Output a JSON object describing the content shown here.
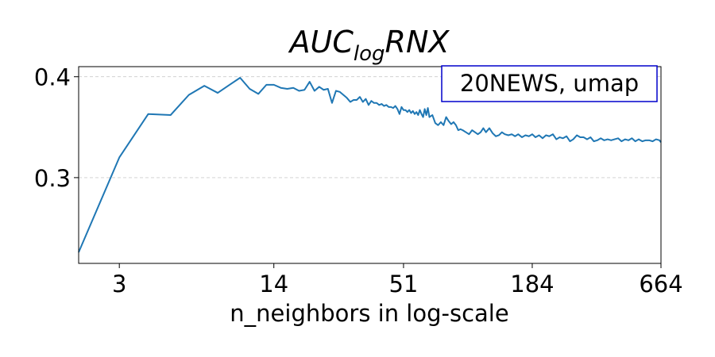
{
  "chart_data": {
    "type": "line",
    "title_main": "AUC",
    "title_sub": "log",
    "title_end": "RNX",
    "xlabel": "n_neighbors in log-scale",
    "ylabel": "",
    "x_scale": "log",
    "xlim": [
      2,
      664
    ],
    "ylim": [
      0.215,
      0.41
    ],
    "x_ticks": [
      3,
      14,
      51,
      184,
      664
    ],
    "x_tick_labels": [
      "3",
      "14",
      "51",
      "184",
      "664"
    ],
    "y_ticks": [
      0.3,
      0.4
    ],
    "y_tick_labels": [
      "0.3",
      "0.4"
    ],
    "grid": "horizontal dashed",
    "annotation": "20NEWS, umap",
    "annotation_position": "top-right",
    "colors": {
      "line": "#1f77b4",
      "annotation_border": "#0000cc",
      "grid": "#cccccc"
    },
    "series": [
      {
        "x": [
          2,
          3,
          4,
          5,
          6,
          7,
          8,
          9,
          10,
          11,
          12,
          13,
          14,
          15,
          16,
          17,
          18,
          19,
          20,
          21,
          22,
          23,
          24,
          25,
          26,
          27,
          28,
          29,
          30,
          31,
          32,
          33,
          34,
          35,
          36,
          37,
          38,
          39,
          40,
          41,
          42,
          43,
          44,
          45,
          46,
          47,
          48,
          49,
          50,
          51,
          52,
          53,
          54,
          55,
          56,
          57,
          58,
          59,
          60,
          61,
          62,
          63,
          64,
          65,
          66,
          68,
          70,
          72,
          74,
          76,
          78,
          80,
          82,
          84,
          86,
          88,
          90,
          92,
          95,
          98,
          101,
          104,
          107,
          110,
          113,
          116,
          120,
          124,
          128,
          132,
          136,
          140,
          145,
          150,
          155,
          160,
          166,
          172,
          178,
          184,
          190,
          197,
          204,
          211,
          218,
          226,
          234,
          242,
          250,
          259,
          268,
          277,
          287,
          297,
          307,
          318,
          329,
          340,
          352,
          364,
          377,
          390,
          404,
          418,
          433,
          448,
          464,
          480,
          497,
          514,
          532,
          551,
          570,
          590,
          611,
          632,
          654,
          664
        ],
        "y": [
          0.226,
          0.32,
          0.363,
          0.362,
          0.382,
          0.391,
          0.384,
          0.392,
          0.399,
          0.388,
          0.383,
          0.392,
          0.392,
          0.389,
          0.388,
          0.389,
          0.386,
          0.387,
          0.395,
          0.386,
          0.39,
          0.387,
          0.388,
          0.374,
          0.386,
          0.385,
          0.382,
          0.379,
          0.375,
          0.377,
          0.377,
          0.38,
          0.375,
          0.378,
          0.372,
          0.376,
          0.374,
          0.374,
          0.372,
          0.373,
          0.371,
          0.372,
          0.37,
          0.37,
          0.369,
          0.371,
          0.368,
          0.363,
          0.37,
          0.367,
          0.367,
          0.365,
          0.367,
          0.364,
          0.366,
          0.363,
          0.365,
          0.362,
          0.367,
          0.363,
          0.36,
          0.368,
          0.362,
          0.369,
          0.36,
          0.362,
          0.354,
          0.352,
          0.355,
          0.352,
          0.36,
          0.356,
          0.353,
          0.355,
          0.352,
          0.347,
          0.348,
          0.347,
          0.345,
          0.343,
          0.347,
          0.345,
          0.343,
          0.345,
          0.349,
          0.345,
          0.349,
          0.344,
          0.341,
          0.342,
          0.345,
          0.343,
          0.342,
          0.343,
          0.341,
          0.343,
          0.34,
          0.342,
          0.341,
          0.343,
          0.34,
          0.342,
          0.339,
          0.342,
          0.341,
          0.343,
          0.338,
          0.34,
          0.339,
          0.341,
          0.336,
          0.338,
          0.342,
          0.34,
          0.34,
          0.338,
          0.34,
          0.336,
          0.337,
          0.339,
          0.337,
          0.338,
          0.337,
          0.338,
          0.339,
          0.336,
          0.338,
          0.337,
          0.339,
          0.336,
          0.338,
          0.336,
          0.337,
          0.337,
          0.336,
          0.338,
          0.337,
          0.335
        ]
      }
    ]
  }
}
